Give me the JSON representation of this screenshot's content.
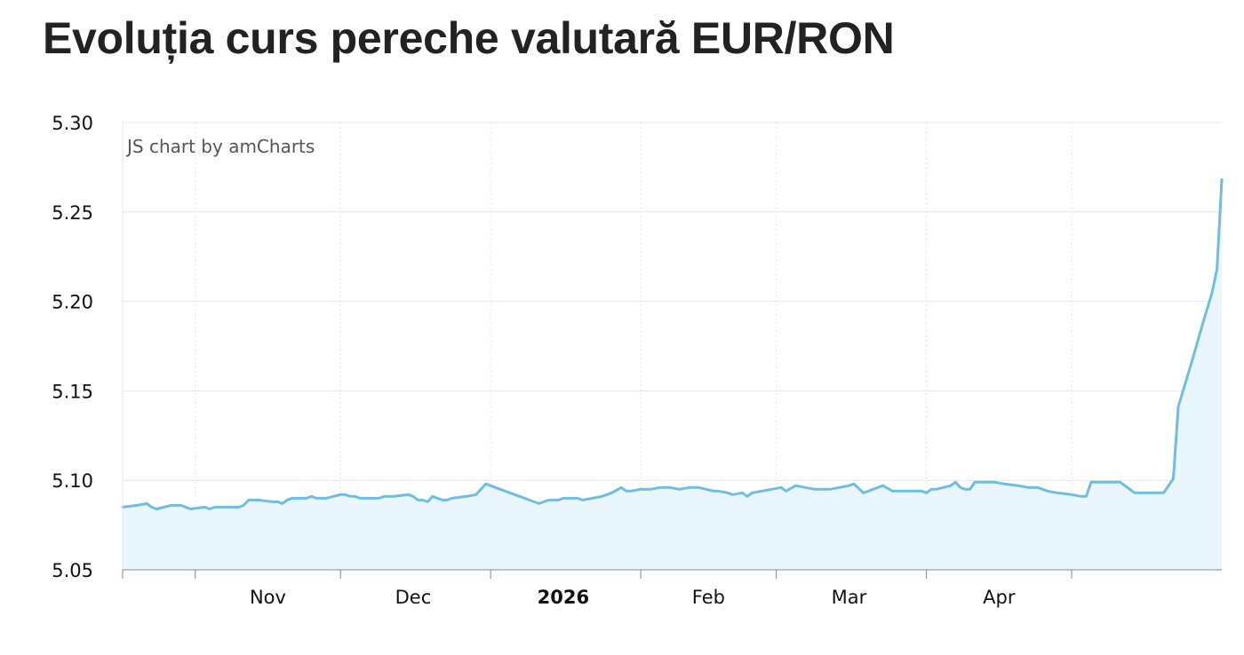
{
  "title": "Evoluția curs pereche valutară EUR/RON",
  "credit": "JS chart by amCharts",
  "colors": {
    "line": "#6fbee0",
    "fill": "#eaf6fd",
    "grid": "#e6e6e6",
    "axis": "#888888"
  },
  "chart_data": {
    "type": "area",
    "title": "Evoluția curs pereche valutară EUR/RON",
    "xlabel": "",
    "ylabel": "",
    "ylim": [
      5.05,
      5.3
    ],
    "yticks": [
      "5.30",
      "5.25",
      "5.20",
      "5.15",
      "5.10",
      "5.05"
    ],
    "x_tick_labels": [
      {
        "label": "Nov",
        "date": "2025-11-01",
        "bold": false
      },
      {
        "label": "Dec",
        "date": "2025-12-01",
        "bold": false
      },
      {
        "label": "2026",
        "date": "2026-01-01",
        "bold": true
      },
      {
        "label": "Feb",
        "date": "2026-02-01",
        "bold": false
      },
      {
        "label": "Mar",
        "date": "2026-03-01",
        "bold": false
      },
      {
        "label": "Apr",
        "date": "2026-04-01",
        "bold": false
      }
    ],
    "grid": true,
    "series": [
      {
        "values": [
          [
            "2025-10-17",
            5.085
          ],
          [
            "2025-10-20",
            5.086
          ],
          [
            "2025-10-22",
            5.087
          ],
          [
            "2025-10-23",
            5.085
          ],
          [
            "2025-10-24",
            5.084
          ],
          [
            "2025-10-27",
            5.086
          ],
          [
            "2025-10-29",
            5.086
          ],
          [
            "2025-10-30",
            5.085
          ],
          [
            "2025-10-31",
            5.084
          ],
          [
            "2025-11-03",
            5.085
          ],
          [
            "2025-11-04",
            5.084
          ],
          [
            "2025-11-05",
            5.085
          ],
          [
            "2025-11-06",
            5.085
          ],
          [
            "2025-11-10",
            5.085
          ],
          [
            "2025-11-11",
            5.086
          ],
          [
            "2025-11-12",
            5.089
          ],
          [
            "2025-11-13",
            5.089
          ],
          [
            "2025-11-14",
            5.089
          ],
          [
            "2025-11-17",
            5.088
          ],
          [
            "2025-11-18",
            5.088
          ],
          [
            "2025-11-19",
            5.087
          ],
          [
            "2025-11-20",
            5.089
          ],
          [
            "2025-11-21",
            5.09
          ],
          [
            "2025-11-24",
            5.09
          ],
          [
            "2025-11-25",
            5.091
          ],
          [
            "2025-11-26",
            5.09
          ],
          [
            "2025-11-27",
            5.09
          ],
          [
            "2025-11-28",
            5.09
          ],
          [
            "2025-12-01",
            5.092
          ],
          [
            "2025-12-02",
            5.092
          ],
          [
            "2025-12-03",
            5.091
          ],
          [
            "2025-12-04",
            5.091
          ],
          [
            "2025-12-05",
            5.09
          ],
          [
            "2025-12-08",
            5.09
          ],
          [
            "2025-12-09",
            5.09
          ],
          [
            "2025-12-10",
            5.091
          ],
          [
            "2025-12-11",
            5.091
          ],
          [
            "2025-12-12",
            5.091
          ],
          [
            "2025-12-15",
            5.092
          ],
          [
            "2025-12-16",
            5.091
          ],
          [
            "2025-12-17",
            5.089
          ],
          [
            "2025-12-18",
            5.089
          ],
          [
            "2025-12-19",
            5.088
          ],
          [
            "2025-12-20",
            5.091
          ],
          [
            "2025-12-22",
            5.089
          ],
          [
            "2025-12-23",
            5.089
          ],
          [
            "2025-12-24",
            5.09
          ],
          [
            "2025-12-27",
            5.091
          ],
          [
            "2025-12-29",
            5.092
          ],
          [
            "2025-12-31",
            5.098
          ],
          [
            "2026-01-03",
            5.095
          ],
          [
            "2026-01-05",
            5.093
          ],
          [
            "2026-01-07",
            5.091
          ],
          [
            "2026-01-09",
            5.089
          ],
          [
            "2026-01-11",
            5.087
          ],
          [
            "2026-01-13",
            5.089
          ],
          [
            "2026-01-15",
            5.089
          ],
          [
            "2026-01-16",
            5.09
          ],
          [
            "2026-01-19",
            5.09
          ],
          [
            "2026-01-20",
            5.089
          ],
          [
            "2026-01-22",
            5.09
          ],
          [
            "2026-01-24",
            5.091
          ],
          [
            "2026-01-26",
            5.093
          ],
          [
            "2026-01-28",
            5.096
          ],
          [
            "2026-01-29",
            5.094
          ],
          [
            "2026-01-30",
            5.094
          ],
          [
            "2026-02-01",
            5.095
          ],
          [
            "2026-02-03",
            5.095
          ],
          [
            "2026-02-05",
            5.096
          ],
          [
            "2026-02-07",
            5.096
          ],
          [
            "2026-02-09",
            5.095
          ],
          [
            "2026-02-11",
            5.096
          ],
          [
            "2026-02-13",
            5.096
          ],
          [
            "2026-02-16",
            5.094
          ],
          [
            "2026-02-17",
            5.094
          ],
          [
            "2026-02-19",
            5.093
          ],
          [
            "2026-02-20",
            5.092
          ],
          [
            "2026-02-22",
            5.093
          ],
          [
            "2026-02-23",
            5.091
          ],
          [
            "2026-02-24",
            5.093
          ],
          [
            "2026-02-26",
            5.094
          ],
          [
            "2026-02-28",
            5.095
          ],
          [
            "2026-03-02",
            5.096
          ],
          [
            "2026-03-03",
            5.094
          ],
          [
            "2026-03-05",
            5.097
          ],
          [
            "2026-03-07",
            5.096
          ],
          [
            "2026-03-09",
            5.095
          ],
          [
            "2026-03-10",
            5.095
          ],
          [
            "2026-03-12",
            5.095
          ],
          [
            "2026-03-14",
            5.096
          ],
          [
            "2026-03-16",
            5.097
          ],
          [
            "2026-03-17",
            5.098
          ],
          [
            "2026-03-19",
            5.093
          ],
          [
            "2026-03-21",
            5.095
          ],
          [
            "2026-03-23",
            5.097
          ],
          [
            "2026-03-25",
            5.094
          ],
          [
            "2026-03-27",
            5.094
          ],
          [
            "2026-03-29",
            5.094
          ],
          [
            "2026-03-31",
            5.094
          ],
          [
            "2026-04-01",
            5.093
          ],
          [
            "2026-04-02",
            5.095
          ],
          [
            "2026-04-03",
            5.095
          ],
          [
            "2026-04-06",
            5.097
          ],
          [
            "2026-04-07",
            5.099
          ],
          [
            "2026-04-08",
            5.096
          ],
          [
            "2026-04-09",
            5.095
          ],
          [
            "2026-04-10",
            5.095
          ],
          [
            "2026-04-11",
            5.099
          ],
          [
            "2026-04-13",
            5.099
          ],
          [
            "2026-04-15",
            5.099
          ],
          [
            "2026-04-17",
            5.098
          ],
          [
            "2026-04-20",
            5.097
          ],
          [
            "2026-04-22",
            5.096
          ],
          [
            "2026-04-24",
            5.096
          ],
          [
            "2026-04-26",
            5.094
          ],
          [
            "2026-04-28",
            5.093
          ],
          [
            "2026-05-01",
            5.092
          ],
          [
            "2026-05-03",
            5.091
          ],
          [
            "2026-05-04",
            5.091
          ],
          [
            "2026-05-05",
            5.099
          ],
          [
            "2026-05-07",
            5.099
          ],
          [
            "2026-05-09",
            5.099
          ],
          [
            "2026-05-11",
            5.099
          ],
          [
            "2026-05-14",
            5.093
          ],
          [
            "2026-05-17",
            5.093
          ],
          [
            "2026-05-19",
            5.093
          ],
          [
            "2026-05-20",
            5.093
          ],
          [
            "2026-05-22",
            5.101
          ],
          [
            "2026-05-23",
            5.141
          ],
          [
            "2026-05-24",
            5.15
          ],
          [
            "2026-05-26",
            5.168
          ],
          [
            "2026-05-28",
            5.187
          ],
          [
            "2026-05-30",
            5.205
          ],
          [
            "2026-05-31",
            5.218
          ],
          [
            "2026-06-01",
            5.268
          ]
        ]
      }
    ]
  }
}
